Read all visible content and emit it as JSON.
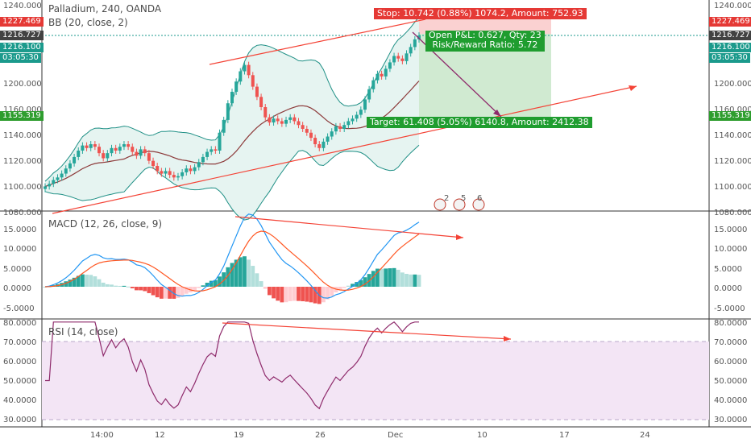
{
  "header": {
    "symbol": "Palladium, 240, OANDA",
    "bb_label": "BB (20, close, 2)",
    "macd_label": "MACD (12, 26, close, 9)",
    "rsi_label": "RSI (14, close)"
  },
  "price_labels": {
    "red_top": "1227.469",
    "dark_top": "1216.727",
    "green_mid": "1216.100",
    "countdown": "03:05:30",
    "green_low": "1155.319",
    "right_red": "1227.469",
    "right_dark": "1216.727",
    "right_green": "1216.100",
    "right_countdown": "03:05:30",
    "right_green_low": "1155.319"
  },
  "position_tool": {
    "stop_text": "Stop: 10.742 (0.88%) 1074.2, Amount: 752.93",
    "open_text": "Open P&L: 0.627, Qty: 23",
    "rr_text": "Risk/Reward Ratio: 5.72",
    "target_text": "Target: 61.408 (5.05%) 6140.8, Amount: 2412.38"
  },
  "colors": {
    "up": "#26a69a",
    "down": "#ef5350",
    "bb_fill": "#e6f4f1",
    "rsi_fill": "#f3e5f5",
    "rsi_line": "#8e2a6b",
    "macd_line": "#2196f3",
    "signal_line": "#ff5722",
    "trend_line": "#f44336",
    "stop_zone": "#f9c9c9",
    "target_zone": "#c8e6c9"
  },
  "events": [
    "2",
    "5",
    "6"
  ],
  "chart_data": [
    {
      "type": "candlestick",
      "title": "Palladium, 240, OANDA",
      "indicator": "BB (20, close, 2)",
      "xticks": [
        "14:00",
        "12",
        "19",
        "26",
        "Dec",
        "10",
        "17",
        "24"
      ],
      "yticks": [
        "1240.000",
        "1220.000",
        "1200.000",
        "1180.000",
        "1160.000",
        "1140.000",
        "1120.000",
        "1100.000",
        "1080.000"
      ],
      "ylim": [
        1080,
        1240
      ],
      "close": [
        1098,
        1100,
        1103,
        1105,
        1108,
        1112,
        1116,
        1121,
        1126,
        1130,
        1128,
        1131,
        1129,
        1124,
        1120,
        1124,
        1128,
        1126,
        1129,
        1131,
        1129,
        1125,
        1122,
        1127,
        1124,
        1118,
        1114,
        1110,
        1108,
        1110,
        1107,
        1105,
        1106,
        1109,
        1112,
        1110,
        1113,
        1117,
        1121,
        1125,
        1127,
        1126,
        1140,
        1150,
        1163,
        1172,
        1180,
        1188,
        1193,
        1185,
        1176,
        1168,
        1160,
        1152,
        1148,
        1151,
        1149,
        1147,
        1150,
        1152,
        1149,
        1146,
        1143,
        1140,
        1136,
        1131,
        1128,
        1133,
        1137,
        1141,
        1145,
        1143,
        1146,
        1149,
        1151,
        1154,
        1158,
        1166,
        1174,
        1181,
        1186,
        1184,
        1190,
        1195,
        1200,
        1198,
        1196,
        1202,
        1207,
        1213,
        1216
      ]
    },
    {
      "type": "line",
      "title": "MACD (12, 26, close, 9)",
      "yticks": [
        "15.0000",
        "10.0000",
        "5.0000",
        "0.0000",
        "-5.0000"
      ],
      "ylim": [
        -7.5,
        18
      ]
    },
    {
      "type": "line",
      "title": "RSI (14, close)",
      "yticks": [
        "80.0000",
        "70.0000",
        "60.0000",
        "50.0000",
        "40.0000",
        "30.0000"
      ],
      "ylim": [
        25,
        82
      ],
      "bands": [
        30,
        70
      ]
    }
  ]
}
